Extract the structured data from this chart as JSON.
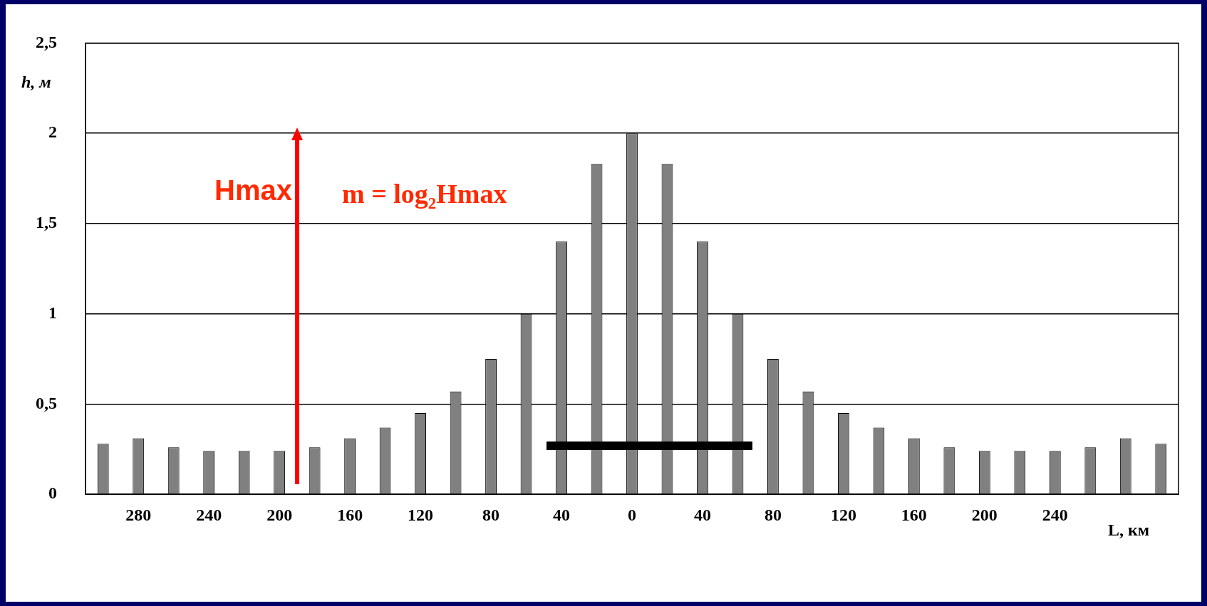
{
  "chart_data": {
    "type": "bar",
    "xlabel": "L, км",
    "ylabel": "h, м",
    "categories": [
      null,
      "280",
      null,
      "240",
      null,
      "200",
      null,
      "160",
      null,
      "120",
      null,
      "80",
      null,
      "40",
      null,
      "0",
      null,
      "40",
      null,
      "80",
      null,
      "120",
      null,
      "160",
      null,
      "200",
      null,
      "240",
      null,
      null,
      null
    ],
    "values": [
      0.28,
      0.31,
      0.26,
      0.24,
      0.24,
      0.24,
      0.26,
      0.31,
      0.37,
      0.45,
      0.57,
      0.75,
      1.0,
      1.4,
      1.83,
      2.0,
      1.83,
      1.4,
      1.0,
      0.75,
      0.57,
      0.45,
      0.37,
      0.31,
      0.26,
      0.24,
      0.24,
      0.24,
      0.26,
      0.31,
      0.28
    ],
    "color": "#808080",
    "ylim": [
      0,
      2.5
    ],
    "yticks": [
      0,
      {
        "value": 0.5,
        "label": "0,5"
      },
      1,
      {
        "value": 1.5,
        "label": "1,5"
      },
      2,
      {
        "value": 2.5,
        "label": "2,5"
      }
    ],
    "grid": "y",
    "annotations": [
      "Hmax",
      "m = log₂Hmax"
    ]
  }
}
